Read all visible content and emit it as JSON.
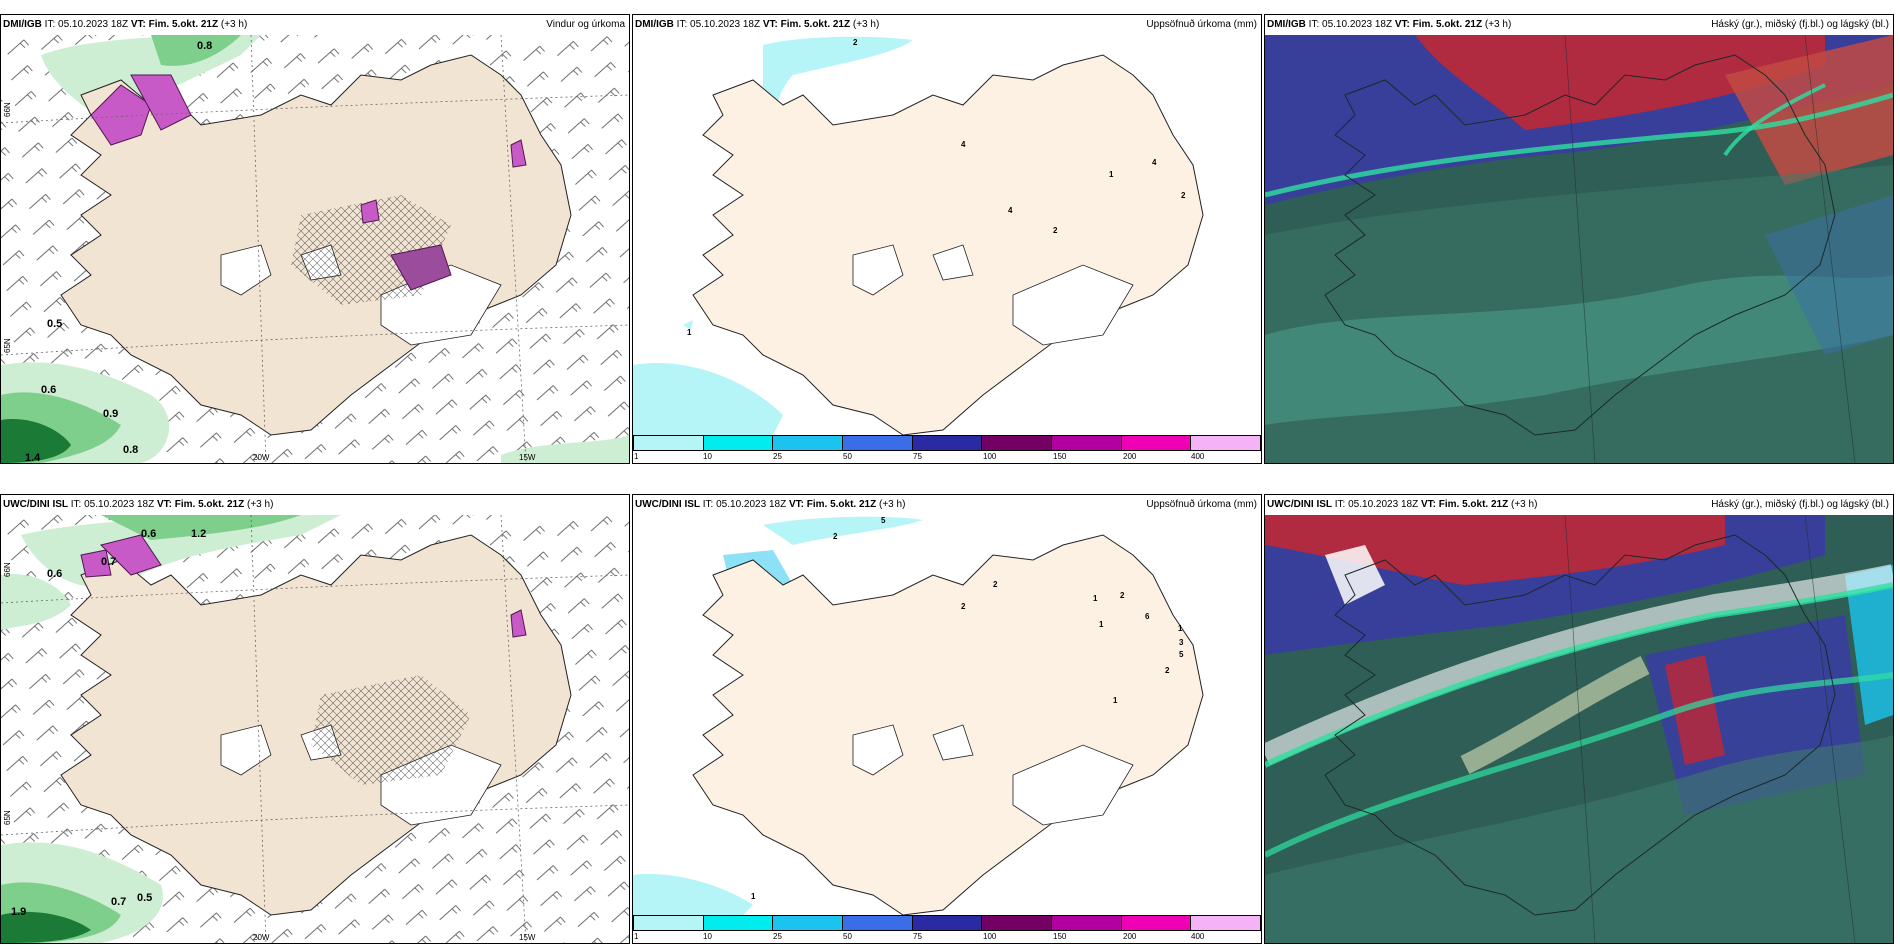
{
  "panels": [
    {
      "model": "DMI/IGB",
      "it_label": "IT:",
      "it_time": "05.10.2023 18Z",
      "vt_label": "VT:",
      "vt_time": "Fim. 5.okt. 21Z",
      "lead": "(+3 h)",
      "product": "Vindur og úrkoma",
      "values": [
        "0.8",
        "0.5",
        "0.6",
        "0.9",
        "0.8",
        "1.4"
      ],
      "lon_labels": [
        "20W",
        "15W"
      ],
      "lat_labels": [
        "66N",
        "65N"
      ]
    },
    {
      "model": "DMI/IGB",
      "it_label": "IT:",
      "it_time": "05.10.2023 18Z",
      "vt_label": "VT:",
      "vt_time": "Fim. 5.okt. 21Z",
      "lead": "(+3 h)",
      "product": "Uppsöfnuð úrkoma (mm)",
      "values": [
        "2",
        "4",
        "4",
        "1",
        "4",
        "2",
        "2",
        "1"
      ],
      "legend_ticks": [
        "1",
        "10",
        "25",
        "50",
        "75",
        "100",
        "150",
        "200",
        "400"
      ]
    },
    {
      "model": "DMI/IGB",
      "it_label": "IT:",
      "it_time": "05.10.2023 18Z",
      "vt_label": "VT:",
      "vt_time": "Fim. 5.okt. 21Z",
      "lead": "(+3 h)",
      "product": "Háský (gr.), miðský (fj.bl.) og lágský (bl.)"
    },
    {
      "model": "UWC/DINI ISL",
      "it_label": "IT:",
      "it_time": "05.10.2023 18Z",
      "vt_label": "VT:",
      "vt_time": "Fim. 5.okt. 21Z",
      "lead": "(+3 h)",
      "product": "",
      "values": [
        "0.6",
        "1.2",
        "0.6",
        "0.7",
        "1.9",
        "0.7",
        "0.5"
      ],
      "lon_labels": [
        "20W",
        "15W"
      ],
      "lat_labels": [
        "66N",
        "65N"
      ]
    },
    {
      "model": "UWC/DINI ISL",
      "it_label": "IT:",
      "it_time": "05.10.2023 18Z",
      "vt_label": "VT:",
      "vt_time": "Fim. 5.okt. 21Z",
      "lead": "(+3 h)",
      "product": "Uppsöfnuð úrkoma (mm)",
      "values": [
        "5",
        "2",
        "2",
        "2",
        "1",
        "2",
        "1",
        "6",
        "1",
        "3",
        "5",
        "2",
        "1",
        "1"
      ],
      "legend_ticks": [
        "1",
        "10",
        "25",
        "50",
        "75",
        "100",
        "150",
        "200",
        "400"
      ]
    },
    {
      "model": "UWC/DINI ISL",
      "it_label": "IT:",
      "it_time": "05.10.2023 18Z",
      "vt_label": "VT:",
      "vt_time": "Fim. 5.okt. 21Z",
      "lead": "(+3 h)",
      "product": "Háský (gr.), miðský (fj.bl.) og lágský (bl.)"
    }
  ],
  "colors": {
    "land": "#f2e4d2",
    "land_precip_panel": "#fdf1e4",
    "ocean": "#ffffff",
    "precip_light": "#cdeed3",
    "precip_mid": "#7fcf8c",
    "precip_dark": "#1c7a37",
    "precip_magenta": "#c85ac8",
    "legend": [
      "#b5f4f7",
      "#00ecef",
      "#1cc3ee",
      "#3a6ee6",
      "#2a2aa3",
      "#730063",
      "#b2009f",
      "#ef00b2",
      "#f5b2f5"
    ],
    "cloud_high": "#2e5e55",
    "cloud_mid": "#3a3aa8",
    "cloud_low_red": "#b02a40",
    "cloud_mint": "#2ee0a0"
  }
}
